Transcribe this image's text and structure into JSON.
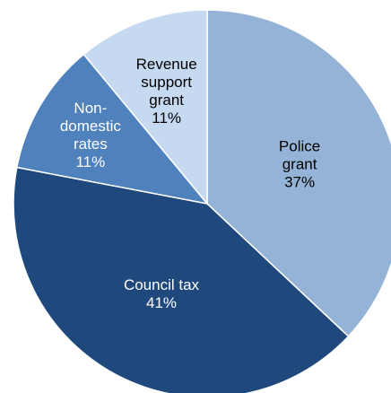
{
  "chart_data": {
    "type": "pie",
    "title": "",
    "start_angle_deg": 0,
    "direction": "clockwise",
    "slices": [
      {
        "lines": [
          "Police",
          "grant",
          "37%"
        ],
        "value": 37,
        "color": "#95b3d7",
        "label_color": "#000000"
      },
      {
        "lines": [
          "Council tax",
          "41%"
        ],
        "value": 41,
        "color": "#1f497d",
        "label_color": "#ffffff"
      },
      {
        "lines": [
          "Non-",
          "domestic",
          "rates",
          "11%"
        ],
        "value": 11,
        "color": "#4f81bd",
        "label_color": "#ffffff"
      },
      {
        "lines": [
          "Revenue",
          "support",
          "grant",
          "11%"
        ],
        "value": 11,
        "color": "#c5d9f1",
        "label_color": "#000000"
      }
    ]
  }
}
